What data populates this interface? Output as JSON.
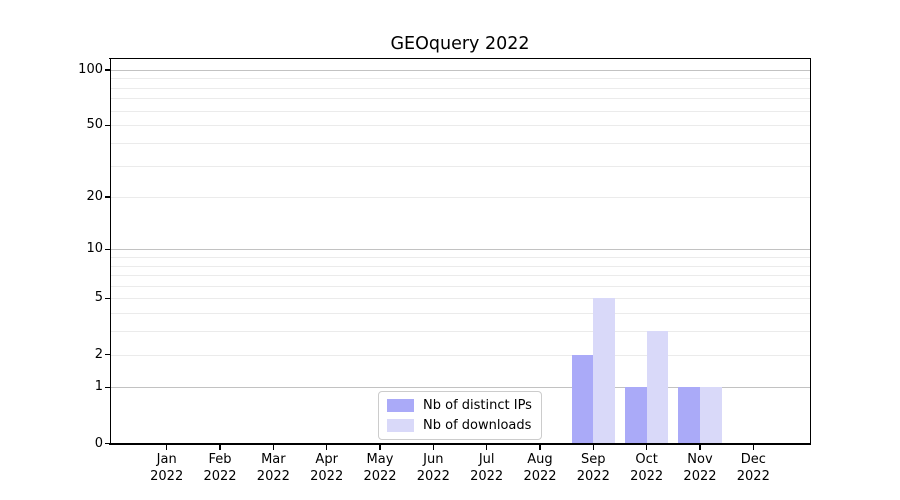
{
  "chart_data": {
    "type": "bar",
    "title": "GEOquery 2022",
    "categories": [
      "Jan",
      "Feb",
      "Mar",
      "Apr",
      "May",
      "Jun",
      "Jul",
      "Aug",
      "Sep",
      "Oct",
      "Nov",
      "Dec"
    ],
    "x_year_label": "2022",
    "series": [
      {
        "name": "Nb of distinct IPs",
        "color": "#aaaaf8",
        "values": [
          0,
          0,
          0,
          0,
          0,
          0,
          0,
          0,
          2,
          1,
          1,
          0
        ]
      },
      {
        "name": "Nb of downloads",
        "color": "#d9d9f9",
        "values": [
          0,
          0,
          0,
          0,
          0,
          0,
          0,
          0,
          5,
          3,
          1,
          0
        ]
      }
    ],
    "yscale": "log1p",
    "yticks": [
      0,
      1,
      2,
      5,
      10,
      20,
      50,
      100
    ],
    "ylim": [
      0,
      116
    ],
    "major_gridlines": [
      1,
      10,
      100
    ],
    "minor_gridlines": [
      2,
      3,
      4,
      5,
      6,
      7,
      8,
      9,
      20,
      30,
      40,
      50,
      60,
      70,
      80,
      90
    ],
    "grid": true,
    "legend_position": "lower center"
  }
}
